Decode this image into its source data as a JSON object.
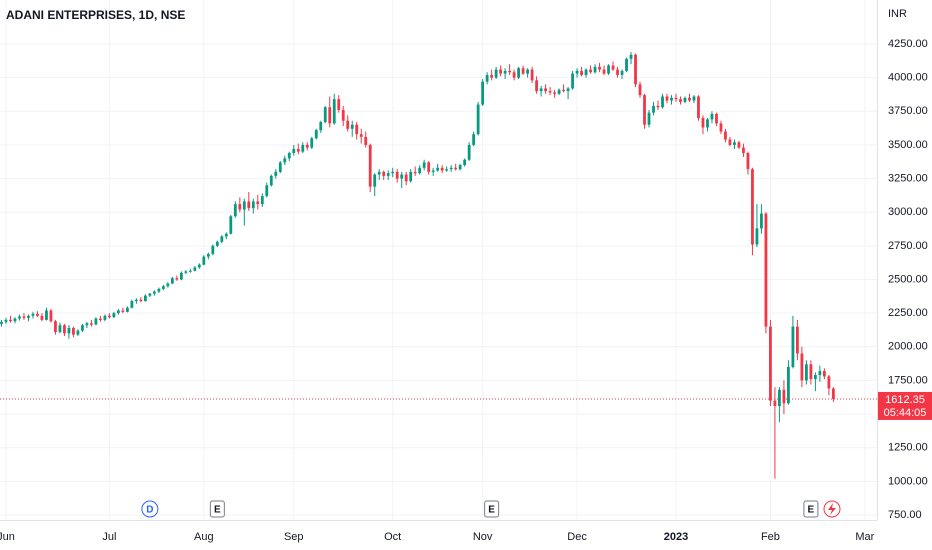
{
  "chart_data": {
    "type": "candlestick",
    "title": "ADANI ENTERPRISES, 1D, NSE",
    "currency": "INR",
    "countdown": "05:44:05",
    "up_color": "#089981",
    "down_color": "#f23645",
    "grid": true,
    "ylim": [
      712.8,
      4577
    ],
    "yticks": [
      {
        "value": 750,
        "label": "750.00"
      },
      {
        "value": 1000,
        "label": "1000.00"
      },
      {
        "value": 1250,
        "label": "1250.00"
      },
      {
        "value": 1500,
        "label": "1500.00"
      },
      {
        "value": 1750,
        "label": "1750.00"
      },
      {
        "value": 2000,
        "label": "2000.00"
      },
      {
        "value": 2250,
        "label": "2250.00"
      },
      {
        "value": 2500,
        "label": "2500.00"
      },
      {
        "value": 2750,
        "label": "2750.00"
      },
      {
        "value": 3000,
        "label": "3000.00"
      },
      {
        "value": 3250,
        "label": "3250.00"
      },
      {
        "value": 3500,
        "label": "3500.00"
      },
      {
        "value": 3750,
        "label": "3750.00"
      },
      {
        "value": 4000,
        "label": "4000.00"
      },
      {
        "value": 4250,
        "label": "4250.00"
      }
    ],
    "xlim": [
      -0.33,
      194.7
    ],
    "xticks": [
      {
        "value": 1,
        "label": "Jun"
      },
      {
        "value": 24,
        "label": "Jul"
      },
      {
        "value": 45,
        "label": "Aug"
      },
      {
        "value": 65,
        "label": "Sep"
      },
      {
        "value": 87,
        "label": "Oct"
      },
      {
        "value": 107,
        "label": "Nov"
      },
      {
        "value": 128,
        "label": "Dec"
      },
      {
        "value": 150,
        "label": "2023"
      },
      {
        "value": 171,
        "label": "Feb"
      },
      {
        "value": 192,
        "label": "Mar"
      }
    ],
    "events": [
      {
        "x": 33,
        "label": "D"
      },
      {
        "x": 48,
        "label": "E"
      },
      {
        "x": 109,
        "label": "E"
      },
      {
        "x": 180,
        "label": "E"
      }
    ],
    "candles": [
      [
        2170,
        2200,
        2150,
        2185
      ],
      [
        2185,
        2215,
        2170,
        2200
      ],
      [
        2200,
        2230,
        2180,
        2190
      ],
      [
        2190,
        2220,
        2175,
        2210
      ],
      [
        2210,
        2240,
        2195,
        2225
      ],
      [
        2225,
        2250,
        2200,
        2215
      ],
      [
        2215,
        2240,
        2190,
        2230
      ],
      [
        2230,
        2260,
        2210,
        2245
      ],
      [
        2245,
        2265,
        2220,
        2230
      ],
      [
        2230,
        2250,
        2190,
        2200
      ],
      [
        2200,
        2290,
        2195,
        2270
      ],
      [
        2270,
        2280,
        2180,
        2190
      ],
      [
        2190,
        2200,
        2090,
        2110
      ],
      [
        2110,
        2180,
        2100,
        2160
      ],
      [
        2160,
        2170,
        2080,
        2100
      ],
      [
        2100,
        2160,
        2060,
        2140
      ],
      [
        2140,
        2150,
        2070,
        2090
      ],
      [
        2090,
        2130,
        2080,
        2120
      ],
      [
        2120,
        2170,
        2110,
        2160
      ],
      [
        2160,
        2185,
        2140,
        2175
      ],
      [
        2175,
        2200,
        2150,
        2165
      ],
      [
        2165,
        2220,
        2160,
        2210
      ],
      [
        2210,
        2230,
        2185,
        2200
      ],
      [
        2200,
        2240,
        2190,
        2230
      ],
      [
        2230,
        2250,
        2210,
        2220
      ],
      [
        2220,
        2260,
        2215,
        2250
      ],
      [
        2250,
        2280,
        2240,
        2270
      ],
      [
        2270,
        2290,
        2250,
        2260
      ],
      [
        2260,
        2300,
        2255,
        2290
      ],
      [
        2290,
        2350,
        2285,
        2340
      ],
      [
        2340,
        2360,
        2320,
        2350
      ],
      [
        2350,
        2370,
        2330,
        2340
      ],
      [
        2340,
        2390,
        2335,
        2380
      ],
      [
        2380,
        2400,
        2370,
        2395
      ],
      [
        2395,
        2420,
        2380,
        2410
      ],
      [
        2410,
        2440,
        2400,
        2430
      ],
      [
        2430,
        2460,
        2420,
        2450
      ],
      [
        2450,
        2480,
        2440,
        2470
      ],
      [
        2470,
        2520,
        2465,
        2510
      ],
      [
        2510,
        2530,
        2490,
        2500
      ],
      [
        2500,
        2560,
        2495,
        2550
      ],
      [
        2550,
        2570,
        2540,
        2560
      ],
      [
        2560,
        2580,
        2550,
        2565
      ],
      [
        2565,
        2600,
        2560,
        2590
      ],
      [
        2590,
        2620,
        2580,
        2610
      ],
      [
        2610,
        2680,
        2605,
        2670
      ],
      [
        2670,
        2700,
        2650,
        2690
      ],
      [
        2690,
        2760,
        2680,
        2750
      ],
      [
        2750,
        2790,
        2740,
        2780
      ],
      [
        2780,
        2830,
        2770,
        2820
      ],
      [
        2820,
        2850,
        2800,
        2840
      ],
      [
        2840,
        2980,
        2835,
        2970
      ],
      [
        2970,
        3080,
        2960,
        3060
      ],
      [
        3060,
        3110,
        3000,
        3020
      ],
      [
        3020,
        3100,
        2900,
        3080
      ],
      [
        3080,
        3150,
        3010,
        3030
      ],
      [
        3030,
        3100,
        2990,
        3080
      ],
      [
        3080,
        3130,
        3020,
        3060
      ],
      [
        3060,
        3140,
        3040,
        3120
      ],
      [
        3120,
        3220,
        3110,
        3200
      ],
      [
        3200,
        3280,
        3190,
        3270
      ],
      [
        3270,
        3320,
        3250,
        3300
      ],
      [
        3300,
        3380,
        3290,
        3370
      ],
      [
        3370,
        3420,
        3350,
        3400
      ],
      [
        3400,
        3450,
        3380,
        3440
      ],
      [
        3440,
        3500,
        3420,
        3470
      ],
      [
        3470,
        3510,
        3430,
        3450
      ],
      [
        3450,
        3520,
        3440,
        3500
      ],
      [
        3500,
        3520,
        3460,
        3480
      ],
      [
        3480,
        3560,
        3470,
        3550
      ],
      [
        3550,
        3620,
        3540,
        3610
      ],
      [
        3610,
        3680,
        3590,
        3670
      ],
      [
        3670,
        3790,
        3660,
        3780
      ],
      [
        3780,
        3860,
        3630,
        3660
      ],
      [
        3660,
        3880,
        3650,
        3840
      ],
      [
        3840,
        3870,
        3740,
        3760
      ],
      [
        3760,
        3790,
        3640,
        3680
      ],
      [
        3680,
        3720,
        3600,
        3620
      ],
      [
        3620,
        3680,
        3560,
        3650
      ],
      [
        3650,
        3670,
        3540,
        3580
      ],
      [
        3580,
        3620,
        3510,
        3560
      ],
      [
        3560,
        3600,
        3480,
        3500
      ],
      [
        3500,
        3510,
        3150,
        3190
      ],
      [
        3190,
        3290,
        3120,
        3280
      ],
      [
        3280,
        3320,
        3240,
        3300
      ],
      [
        3300,
        3310,
        3240,
        3270
      ],
      [
        3270,
        3310,
        3240,
        3290
      ],
      [
        3290,
        3330,
        3260,
        3300
      ],
      [
        3300,
        3320,
        3220,
        3250
      ],
      [
        3250,
        3300,
        3180,
        3280
      ],
      [
        3280,
        3300,
        3200,
        3230
      ],
      [
        3230,
        3320,
        3220,
        3300
      ],
      [
        3300,
        3340,
        3270,
        3290
      ],
      [
        3290,
        3350,
        3280,
        3330
      ],
      [
        3330,
        3390,
        3310,
        3370
      ],
      [
        3370,
        3380,
        3280,
        3300
      ],
      [
        3300,
        3330,
        3270,
        3310
      ],
      [
        3310,
        3360,
        3300,
        3330
      ],
      [
        3330,
        3350,
        3290,
        3310
      ],
      [
        3310,
        3340,
        3300,
        3320
      ],
      [
        3320,
        3350,
        3300,
        3330
      ],
      [
        3330,
        3360,
        3310,
        3320
      ],
      [
        3320,
        3360,
        3310,
        3350
      ],
      [
        3350,
        3400,
        3340,
        3390
      ],
      [
        3390,
        3520,
        3380,
        3500
      ],
      [
        3500,
        3600,
        3490,
        3580
      ],
      [
        3580,
        3820,
        3570,
        3800
      ],
      [
        3800,
        3990,
        3790,
        3970
      ],
      [
        3970,
        4040,
        3950,
        4020
      ],
      [
        4020,
        4060,
        3980,
        4000
      ],
      [
        4000,
        4080,
        3990,
        4060
      ],
      [
        4060,
        4090,
        4010,
        4030
      ],
      [
        4030,
        4070,
        3990,
        4050
      ],
      [
        4050,
        4100,
        4020,
        4040
      ],
      [
        4040,
        4060,
        3980,
        4000
      ],
      [
        4000,
        4080,
        3990,
        4070
      ],
      [
        4070,
        4090,
        4020,
        4030
      ],
      [
        4030,
        4070,
        4000,
        4060
      ],
      [
        4060,
        4080,
        3960,
        3980
      ],
      [
        3980,
        4010,
        3880,
        3900
      ],
      [
        3900,
        3940,
        3860,
        3920
      ],
      [
        3920,
        3950,
        3880,
        3900
      ],
      [
        3900,
        3930,
        3870,
        3890
      ],
      [
        3890,
        3910,
        3850,
        3880
      ],
      [
        3880,
        3920,
        3870,
        3910
      ],
      [
        3910,
        3950,
        3890,
        3900
      ],
      [
        3900,
        3930,
        3840,
        3920
      ],
      [
        3920,
        4050,
        3910,
        4030
      ],
      [
        4030,
        4070,
        4000,
        4050
      ],
      [
        4050,
        4080,
        4010,
        4020
      ],
      [
        4020,
        4070,
        4000,
        4060
      ],
      [
        4060,
        4090,
        4030,
        4040
      ],
      [
        4040,
        4100,
        4030,
        4080
      ],
      [
        4080,
        4110,
        4040,
        4060
      ],
      [
        4060,
        4090,
        4020,
        4030
      ],
      [
        4030,
        4100,
        4020,
        4090
      ],
      [
        4090,
        4120,
        4050,
        4060
      ],
      [
        4060,
        4080,
        4000,
        4020
      ],
      [
        4020,
        4060,
        3990,
        4050
      ],
      [
        4050,
        4150,
        4040,
        4140
      ],
      [
        4140,
        4190,
        4100,
        4170
      ],
      [
        4170,
        4180,
        3930,
        3950
      ],
      [
        3950,
        3970,
        3850,
        3870
      ],
      [
        3870,
        3880,
        3620,
        3650
      ],
      [
        3650,
        3760,
        3630,
        3740
      ],
      [
        3740,
        3820,
        3720,
        3790
      ],
      [
        3790,
        3830,
        3760,
        3780
      ],
      [
        3780,
        3880,
        3770,
        3860
      ],
      [
        3860,
        3880,
        3810,
        3830
      ],
      [
        3830,
        3870,
        3800,
        3850
      ],
      [
        3850,
        3880,
        3820,
        3840
      ],
      [
        3840,
        3860,
        3800,
        3820
      ],
      [
        3820,
        3860,
        3810,
        3850
      ],
      [
        3850,
        3880,
        3820,
        3830
      ],
      [
        3830,
        3870,
        3810,
        3860
      ],
      [
        3860,
        3870,
        3680,
        3700
      ],
      [
        3700,
        3720,
        3580,
        3630
      ],
      [
        3630,
        3700,
        3600,
        3690
      ],
      [
        3690,
        3750,
        3660,
        3730
      ],
      [
        3730,
        3740,
        3640,
        3660
      ],
      [
        3660,
        3680,
        3580,
        3600
      ],
      [
        3600,
        3620,
        3520,
        3540
      ],
      [
        3540,
        3560,
        3490,
        3500
      ],
      [
        3500,
        3540,
        3470,
        3520
      ],
      [
        3520,
        3530,
        3470,
        3480
      ],
      [
        3480,
        3510,
        3410,
        3440
      ],
      [
        3440,
        3450,
        3280,
        3320
      ],
      [
        3320,
        3330,
        2680,
        2760
      ],
      [
        2760,
        3060,
        2740,
        2880
      ],
      [
        2880,
        3060,
        2840,
        2990
      ],
      [
        2990,
        3000,
        2100,
        2150
      ],
      [
        2150,
        2200,
        1560,
        1600
      ],
      [
        1600,
        1700,
        1020,
        1560
      ],
      [
        1560,
        1700,
        1440,
        1680
      ],
      [
        1680,
        1750,
        1500,
        1580
      ],
      [
        1580,
        1900,
        1570,
        1850
      ],
      [
        1850,
        2230,
        1840,
        2150
      ],
      [
        2150,
        2200,
        1900,
        1950
      ],
      [
        1950,
        2000,
        1700,
        1750
      ],
      [
        1750,
        1900,
        1720,
        1870
      ],
      [
        1870,
        1900,
        1720,
        1760
      ],
      [
        1760,
        1810,
        1670,
        1790
      ],
      [
        1790,
        1860,
        1740,
        1820
      ],
      [
        1820,
        1840,
        1760,
        1780
      ],
      [
        1780,
        1790,
        1640,
        1690
      ],
      [
        1690,
        1700,
        1590,
        1612.35
      ]
    ]
  }
}
